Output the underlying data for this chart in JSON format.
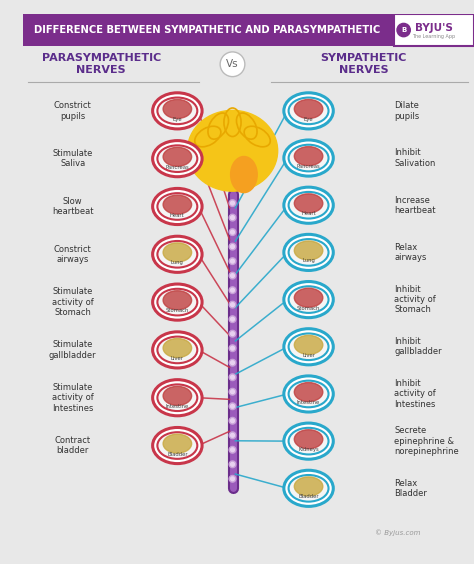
{
  "title": "DIFFERENCE BETWEEN SYMPATHETIC AND PARASYMPATHETIC",
  "title_bg": "#7B2D8B",
  "title_color": "#FFFFFF",
  "bg_color": "#E8E8E8",
  "left_header": "PARASYMPATHETIC\nNERVES",
  "right_header": "SYMPATHETIC\nNERVES",
  "vs_text": "Vs",
  "header_color": "#5B2D8B",
  "left_items": [
    {
      "label": "Constrict\npupils",
      "organ": "Eye",
      "icon_color": "#C04040",
      "border": "#C8364A"
    },
    {
      "label": "Stimulate\nSaliva",
      "organ": "Pancreas",
      "icon_color": "#C04040",
      "border": "#C8364A"
    },
    {
      "label": "Slow\nheartbeat",
      "organ": "Heart",
      "icon_color": "#C04040",
      "border": "#C8364A"
    },
    {
      "label": "Constrict\nairways",
      "organ": "Lung",
      "icon_color": "#C8A840",
      "border": "#C8364A"
    },
    {
      "label": "Stimulate\nactivity of\nStomach",
      "organ": "Stomach",
      "icon_color": "#C04040",
      "border": "#C8364A"
    },
    {
      "label": "Stimulate\ngallbladder",
      "organ": "Liver",
      "icon_color": "#C8A840",
      "border": "#C8364A"
    },
    {
      "label": "Stimulate\nactivity of\nIntestines",
      "organ": "Intestine",
      "icon_color": "#C04040",
      "border": "#C8364A"
    },
    {
      "label": "Contract\nbladder",
      "organ": "Bladder",
      "icon_color": "#C8A840",
      "border": "#C8364A"
    }
  ],
  "right_items": [
    {
      "label": "Dilate\npupils",
      "organ": "Eye",
      "icon_color": "#C04040",
      "border": "#29A8CB"
    },
    {
      "label": "Inhibit\nSalivation",
      "organ": "Pancreas",
      "icon_color": "#C04040",
      "border": "#29A8CB"
    },
    {
      "label": "Increase\nheartbeat",
      "organ": "Heart",
      "icon_color": "#C04040",
      "border": "#29A8CB"
    },
    {
      "label": "Relax\nairways",
      "organ": "Lung",
      "icon_color": "#C8A840",
      "border": "#29A8CB"
    },
    {
      "label": "Inhibit\nactivity of\nStomach",
      "organ": "Stomach",
      "icon_color": "#C04040",
      "border": "#29A8CB"
    },
    {
      "label": "Inhibit\ngallbladder",
      "organ": "Liver",
      "icon_color": "#C8A840",
      "border": "#29A8CB"
    },
    {
      "label": "Inhibit\nactivity of\nIntestines",
      "organ": "Intestine",
      "icon_color": "#C04040",
      "border": "#29A8CB"
    },
    {
      "label": "Secrete\nepinephrine &\nnorepinephrine",
      "organ": "Kidneys",
      "icon_color": "#C04040",
      "border": "#29A8CB"
    },
    {
      "label": "Relax\nBladder",
      "organ": "Bladder",
      "icon_color": "#C8A840",
      "border": "#29A8CB"
    }
  ],
  "spine_color": "#7B3A9B",
  "left_line_color": "#C8364A",
  "right_line_color": "#29A8CB",
  "byju_color": "#7B2D8B",
  "byjus_text": "BYJU'S",
  "watermark": "© Byjus.com"
}
